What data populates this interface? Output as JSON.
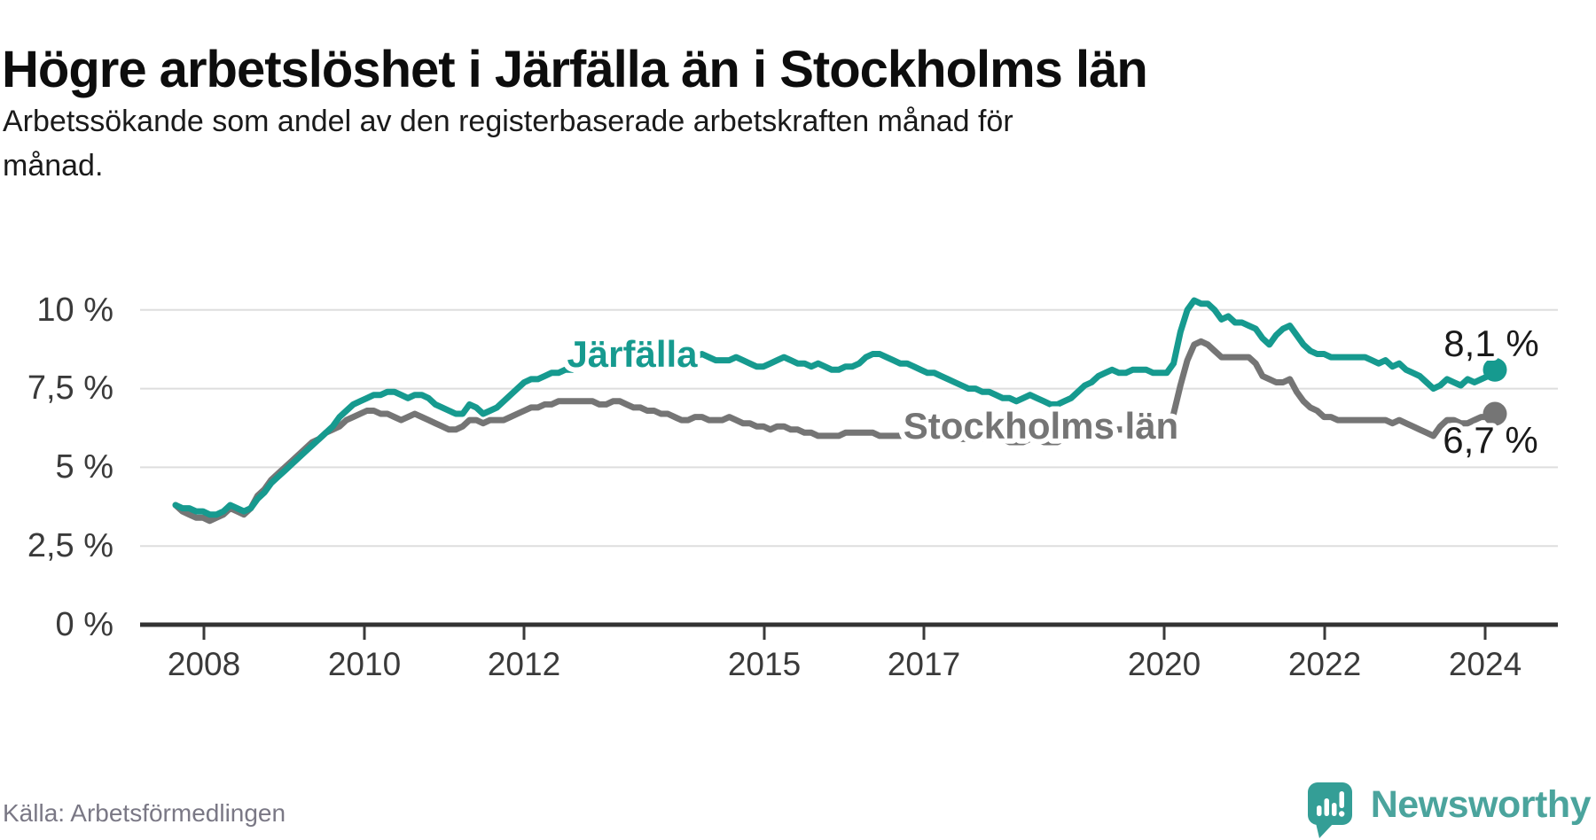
{
  "header": {
    "title": "Högre arbetslöshet i Järfälla än i Stockholms län",
    "subtitle_line1": "Arbetssökande som andel av den registerbaserade arbetskraften månad för",
    "subtitle_line2": "månad."
  },
  "chart_data": {
    "type": "line",
    "unit": "%",
    "frequency": "monthly",
    "x_start": "2008-01",
    "x_end": "2024-02",
    "grid": true,
    "legend_position": "inline-labels",
    "ylim": [
      0,
      10.8
    ],
    "y_tick_values": [
      0,
      2.5,
      5,
      7.5,
      10
    ],
    "y_tick_labels": [
      "0 %",
      "2,5 %",
      "5 %",
      "7,5 %",
      "10 %"
    ],
    "x_tick_labels": [
      "2008",
      "2010",
      "2012",
      "2015",
      "2017",
      "2020",
      "2022",
      "2024"
    ],
    "series": [
      {
        "name": "Järfälla",
        "color": "#169a8f",
        "end_label": "8,1 %",
        "latest_value": 8.1,
        "values": [
          3.8,
          3.7,
          3.7,
          3.6,
          3.6,
          3.5,
          3.5,
          3.6,
          3.8,
          3.7,
          3.6,
          3.7,
          4.0,
          4.2,
          4.5,
          4.7,
          4.9,
          5.1,
          5.3,
          5.5,
          5.7,
          5.9,
          6.1,
          6.3,
          6.6,
          6.8,
          7.0,
          7.1,
          7.2,
          7.3,
          7.3,
          7.4,
          7.4,
          7.3,
          7.2,
          7.3,
          7.3,
          7.2,
          7.0,
          6.9,
          6.8,
          6.7,
          6.7,
          7.0,
          6.9,
          6.7,
          6.8,
          6.9,
          7.1,
          7.3,
          7.5,
          7.7,
          7.8,
          7.8,
          7.9,
          8.0,
          8.0,
          8.1,
          8.1,
          8.2,
          8.3,
          8.3,
          8.4,
          8.4,
          8.5,
          8.5,
          8.6,
          8.6,
          8.5,
          8.5,
          8.4,
          8.4,
          8.5,
          8.5,
          8.4,
          8.4,
          8.5,
          8.6,
          8.5,
          8.4,
          8.4,
          8.4,
          8.5,
          8.4,
          8.3,
          8.2,
          8.2,
          8.3,
          8.4,
          8.5,
          8.4,
          8.3,
          8.3,
          8.2,
          8.3,
          8.2,
          8.1,
          8.1,
          8.2,
          8.2,
          8.3,
          8.5,
          8.6,
          8.6,
          8.5,
          8.4,
          8.3,
          8.3,
          8.2,
          8.1,
          8.0,
          8.0,
          7.9,
          7.8,
          7.7,
          7.6,
          7.5,
          7.5,
          7.4,
          7.4,
          7.3,
          7.2,
          7.2,
          7.1,
          7.2,
          7.3,
          7.2,
          7.1,
          7.0,
          7.0,
          7.1,
          7.2,
          7.4,
          7.6,
          7.7,
          7.9,
          8.0,
          8.1,
          8.0,
          8.0,
          8.1,
          8.1,
          8.1,
          8.0,
          8.0,
          8.0,
          8.3,
          9.3,
          10.0,
          10.3,
          10.2,
          10.2,
          10.0,
          9.7,
          9.8,
          9.6,
          9.6,
          9.5,
          9.4,
          9.1,
          8.9,
          9.2,
          9.4,
          9.5,
          9.2,
          8.9,
          8.7,
          8.6,
          8.6,
          8.5,
          8.5,
          8.5,
          8.5,
          8.5,
          8.5,
          8.4,
          8.3,
          8.4,
          8.2,
          8.3,
          8.1,
          8.0,
          7.9,
          7.7,
          7.5,
          7.6,
          7.8,
          7.7,
          7.6,
          7.8,
          7.7,
          7.8,
          7.9,
          8.1
        ]
      },
      {
        "name": "Stockholms län",
        "color": "#757575",
        "end_label": "6,7 %",
        "latest_value": 6.7,
        "values": [
          3.8,
          3.6,
          3.5,
          3.4,
          3.4,
          3.3,
          3.4,
          3.5,
          3.7,
          3.6,
          3.5,
          3.7,
          4.1,
          4.3,
          4.6,
          4.8,
          5.0,
          5.2,
          5.4,
          5.6,
          5.8,
          5.9,
          6.1,
          6.2,
          6.3,
          6.5,
          6.6,
          6.7,
          6.8,
          6.8,
          6.7,
          6.7,
          6.6,
          6.5,
          6.6,
          6.7,
          6.6,
          6.5,
          6.4,
          6.3,
          6.2,
          6.2,
          6.3,
          6.5,
          6.5,
          6.4,
          6.5,
          6.5,
          6.5,
          6.6,
          6.7,
          6.8,
          6.9,
          6.9,
          7.0,
          7.0,
          7.1,
          7.1,
          7.1,
          7.1,
          7.1,
          7.1,
          7.0,
          7.0,
          7.1,
          7.1,
          7.0,
          6.9,
          6.9,
          6.8,
          6.8,
          6.7,
          6.7,
          6.6,
          6.5,
          6.5,
          6.6,
          6.6,
          6.5,
          6.5,
          6.5,
          6.6,
          6.5,
          6.4,
          6.4,
          6.3,
          6.3,
          6.2,
          6.3,
          6.3,
          6.2,
          6.2,
          6.1,
          6.1,
          6.0,
          6.0,
          6.0,
          6.0,
          6.1,
          6.1,
          6.1,
          6.1,
          6.1,
          6.0,
          6.0,
          6.0,
          6.0,
          6.0,
          6.0,
          6.0,
          6.0,
          5.9,
          5.9,
          5.9,
          5.9,
          5.9,
          5.9,
          5.9,
          5.9,
          6.0,
          5.9,
          5.9,
          5.8,
          5.8,
          5.8,
          5.9,
          5.9,
          5.8,
          5.8,
          5.8,
          5.9,
          5.9,
          6.0,
          6.0,
          6.1,
          6.1,
          6.1,
          6.2,
          6.2,
          6.2,
          6.2,
          6.2,
          6.3,
          6.3,
          6.4,
          6.4,
          6.7,
          7.6,
          8.4,
          8.9,
          9.0,
          8.9,
          8.7,
          8.5,
          8.5,
          8.5,
          8.5,
          8.5,
          8.3,
          7.9,
          7.8,
          7.7,
          7.7,
          7.8,
          7.4,
          7.1,
          6.9,
          6.8,
          6.6,
          6.6,
          6.5,
          6.5,
          6.5,
          6.5,
          6.5,
          6.5,
          6.5,
          6.5,
          6.4,
          6.5,
          6.4,
          6.3,
          6.2,
          6.1,
          6.0,
          6.3,
          6.5,
          6.5,
          6.4,
          6.4,
          6.5,
          6.6,
          6.6,
          6.7
        ]
      }
    ]
  },
  "footer": {
    "source": "Källa: Arbetsförmedlingen",
    "brand": "Newsworthy"
  },
  "colors": {
    "jarfalla": "#169a8f",
    "stockholm": "#757575",
    "brand_teal": "#4ba49d",
    "logo_bubble": "#349e96",
    "grid": "#dedede",
    "axis": "#333333"
  }
}
